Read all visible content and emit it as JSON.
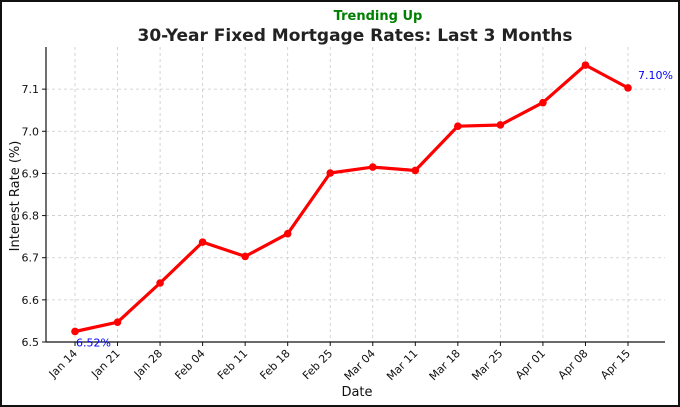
{
  "chart_data": {
    "type": "line",
    "title": "30-Year Fixed Mortgage Rates: Last 3 Months",
    "subtitle": "Trending Up",
    "xlabel": "Date",
    "ylabel": "Interest Rate (%)",
    "categories": [
      "Jan 14",
      "Jan 21",
      "Jan 28",
      "Feb 04",
      "Feb 11",
      "Feb 18",
      "Feb 25",
      "Mar 04",
      "Mar 11",
      "Mar 18",
      "Mar 25",
      "Apr 01",
      "Apr 08",
      "Apr 15"
    ],
    "series": [
      {
        "values": [
          6.525,
          6.547,
          6.64,
          6.737,
          6.703,
          6.757,
          6.901,
          6.915,
          6.907,
          7.012,
          7.015,
          7.068,
          7.157,
          7.103
        ]
      }
    ],
    "ylim": [
      6.5,
      7.2
    ],
    "yticks": [
      "6.5",
      "6.6",
      "6.7",
      "6.8",
      "6.9",
      "7.0",
      "7.1"
    ],
    "grid": true,
    "annotations": [
      {
        "text": "6.52%",
        "index": 0
      },
      {
        "text": "7.10%",
        "index": 13
      }
    ],
    "colors": {
      "line": "#ff0000",
      "subtitle": "#008000",
      "annotation": "#0000ff"
    }
  }
}
